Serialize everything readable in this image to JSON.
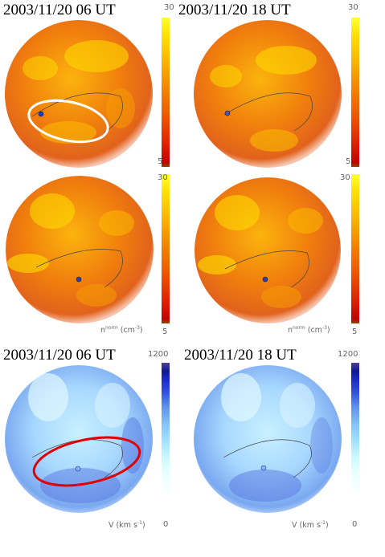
{
  "panels": {
    "top_left": {
      "title": "2003/11/20  06 UT",
      "cb_max": "30",
      "cb_min": "5"
    },
    "top_right": {
      "title": "2003/11/20  18 UT",
      "cb_max": "30",
      "cb_min": "5"
    },
    "mid_left": {
      "cb_max": "30",
      "cb_min": "5",
      "cb_label_base": "n",
      "cb_label_sup": "norm",
      "cb_label_unit": " (cm",
      "cb_label_unit_sup": "-3",
      "cb_label_close": ")"
    },
    "mid_right": {
      "cb_max": "30",
      "cb_min": "5",
      "cb_label_base": "n",
      "cb_label_sup": "norm",
      "cb_label_unit": " (cm",
      "cb_label_unit_sup": "-3",
      "cb_label_close": ")"
    },
    "bot_left": {
      "title": "2003/11/20  06 UT",
      "cb_max": "1200",
      "cb_min": "0",
      "cb_label": "V (km s",
      "cb_label_sup": "-1",
      "cb_label_close": ")"
    },
    "bot_right": {
      "title": "2003/11/20  18 UT",
      "cb_max": "1200",
      "cb_min": "0",
      "cb_label": "V (km s",
      "cb_label_sup": "-1",
      "cb_label_close": ")"
    }
  },
  "colors": {
    "density_colormap": [
      "#8a4a00",
      "#c40000",
      "#e02000",
      "#ee5a00",
      "#f58a00",
      "#fbb800",
      "#fde000",
      "#ffff30"
    ],
    "velocity_colormap": [
      "#ffffff",
      "#e8ffff",
      "#c8f8ff",
      "#a0e0ff",
      "#80c0f8",
      "#6090f0",
      "#3050e0",
      "#1a28c8",
      "#101890",
      "#5040a0"
    ],
    "highlight_white": "#ffffff",
    "highlight_red": "#e00000"
  }
}
